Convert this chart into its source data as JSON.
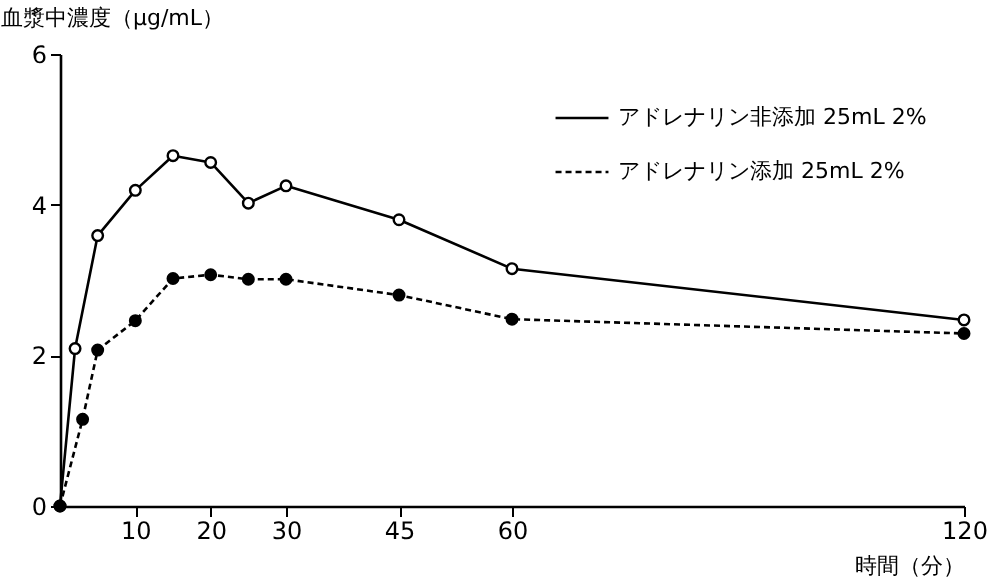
{
  "chart_data": {
    "type": "line",
    "xlabel": "時間（分）",
    "ylabel": "血漿中濃度（μg/mL）",
    "xlim": [
      0,
      120
    ],
    "xticks": [
      10,
      20,
      30,
      45,
      60,
      120
    ],
    "ylim": [
      0,
      6
    ],
    "yticks": [
      0,
      2,
      4,
      6
    ],
    "grid": false,
    "legend": "top right",
    "marker": "circle",
    "series": [
      {
        "name": "アドレナリン非添加 25mL 2%",
        "color": "#000000",
        "line_style": "solid",
        "x": [
          0,
          2,
          5,
          10,
          15,
          20,
          25,
          30,
          45,
          60,
          120
        ],
        "values": [
          0,
          2.09,
          3.59,
          4.19,
          4.65,
          4.56,
          4.02,
          4.25,
          3.8,
          3.15,
          2.47
        ]
      },
      {
        "name": "アドレナリン添加 25mL 2%",
        "color": "#000000",
        "line_style": "dashed",
        "x": [
          0,
          3,
          5,
          10,
          15,
          20,
          25,
          30,
          45,
          60,
          120
        ],
        "values": [
          0,
          1.15,
          2.07,
          2.46,
          3.02,
          3.07,
          3.01,
          3.01,
          2.8,
          2.48,
          2.29
        ]
      }
    ]
  }
}
